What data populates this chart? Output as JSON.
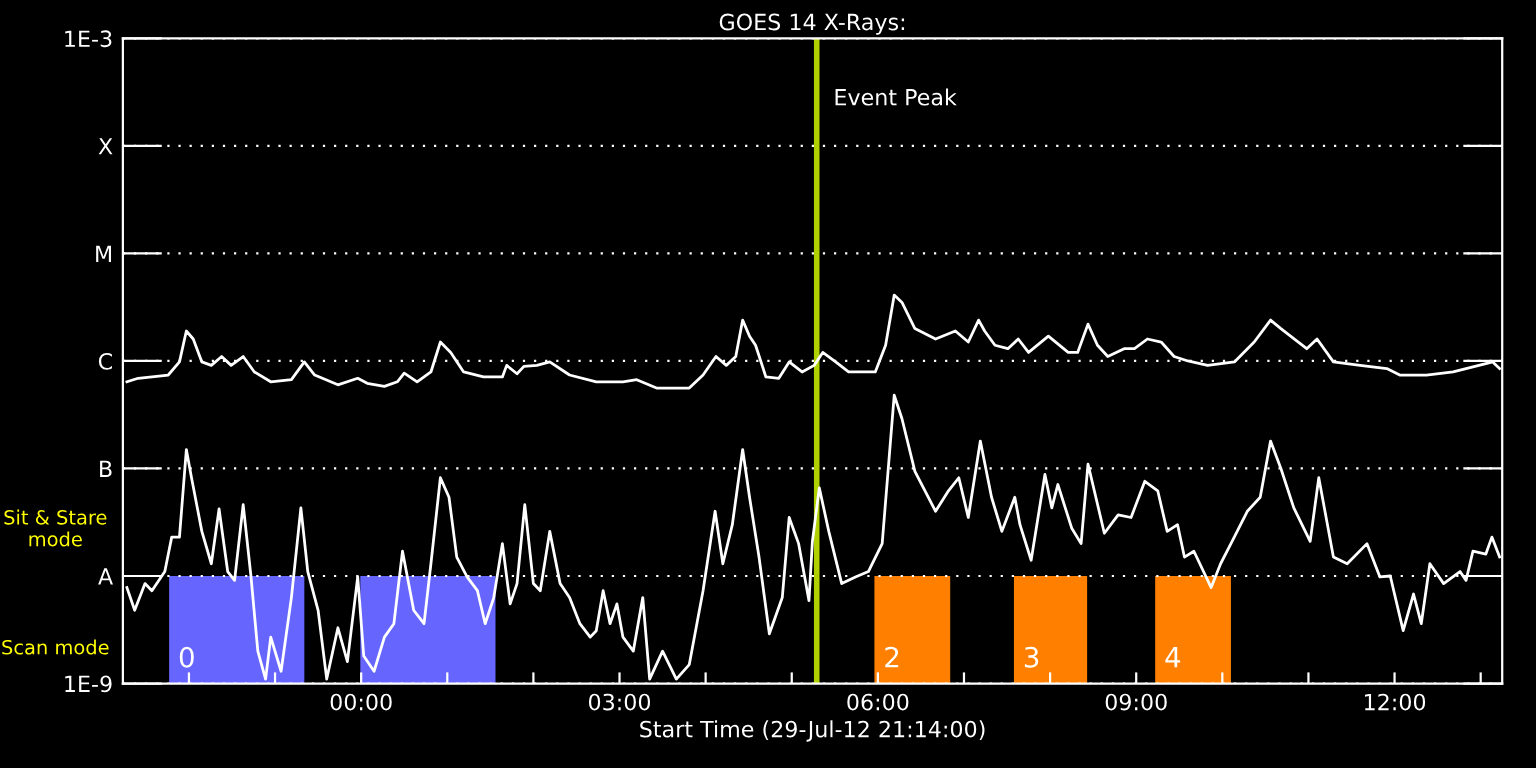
{
  "chart_data": {
    "type": "line",
    "title": "GOES 14 X-Rays:",
    "xlabel": "Start Time (29-Jul-12 21:14:00)",
    "log": true,
    "grid": "y",
    "line_style": "solid",
    "marker": "none",
    "xlim": [
      -2.767,
      13.25
    ],
    "xticks": [
      {
        "value": -2,
        "label": null
      },
      {
        "value": -1,
        "label": null
      },
      {
        "value": 0,
        "label": "00:00"
      },
      {
        "value": 1,
        "label": null
      },
      {
        "value": 2,
        "label": null
      },
      {
        "value": 3,
        "label": "03:00"
      },
      {
        "value": 4,
        "label": null
      },
      {
        "value": 5,
        "label": null
      },
      {
        "value": 6,
        "label": "06:00"
      },
      {
        "value": 7,
        "label": null
      },
      {
        "value": 8,
        "label": null
      },
      {
        "value": 9,
        "label": "09:00"
      },
      {
        "value": 10,
        "label": null
      },
      {
        "value": 11,
        "label": null
      },
      {
        "value": 12,
        "label": "12:00"
      },
      {
        "value": 13,
        "label": null
      }
    ],
    "ylim": [
      1e-09,
      0.001
    ],
    "yticks": [
      {
        "value": 1e-09,
        "label": "1E-9"
      },
      {
        "value": 1e-08,
        "label": "A"
      },
      {
        "value": 1e-07,
        "label": "B"
      },
      {
        "value": 1e-06,
        "label": "C"
      },
      {
        "value": 1e-05,
        "label": "M"
      },
      {
        "value": 0.0001,
        "label": "X"
      },
      {
        "value": 0.001,
        "label": "1E-3"
      }
    ],
    "series": [
      {
        "color": "#ffffff",
        "x": [
          -2.72,
          -2.59,
          -2.24,
          -2.11,
          -2.03,
          -1.95,
          -1.85,
          -1.74,
          -1.62,
          -1.51,
          -1.37,
          -1.24,
          -1.05,
          -0.81,
          -0.66,
          -0.54,
          -0.27,
          -0.04,
          0.07,
          0.27,
          0.42,
          0.5,
          0.65,
          0.81,
          0.92,
          1.04,
          1.19,
          1.42,
          1.64,
          1.69,
          1.81,
          1.89,
          2.04,
          2.19,
          2.42,
          2.73,
          3.04,
          3.2,
          3.43,
          3.81,
          3.97,
          4.12,
          4.24,
          4.35,
          4.43,
          4.51,
          4.58,
          4.7,
          4.85,
          4.97,
          5.12,
          5.26,
          5.36,
          5.51,
          5.66,
          5.97,
          6.09,
          6.19,
          6.28,
          6.43,
          6.67,
          6.9,
          7.05,
          7.17,
          7.24,
          7.36,
          7.51,
          7.63,
          7.75,
          7.98,
          8.21,
          8.32,
          8.44,
          8.55,
          8.67,
          8.86,
          8.98,
          9.13,
          9.29,
          9.44,
          9.6,
          9.83,
          10.14,
          10.37,
          10.56,
          10.68,
          10.98,
          11.1,
          11.29,
          11.6,
          11.91,
          12.06,
          12.37,
          12.68,
          12.83,
          13.14,
          13.22
        ],
        "values": [
          6.4e-07,
          6.9e-07,
          7.4e-07,
          9.8e-07,
          1.9e-06,
          1.6e-06,
          9.8e-07,
          9.1e-07,
          1.1e-06,
          9.1e-07,
          1.1e-06,
          7.9e-07,
          6.4e-07,
          6.7e-07,
          9.8e-07,
          7.4e-07,
          6e-07,
          6.9e-07,
          6.2e-07,
          5.8e-07,
          6.4e-07,
          7.7e-07,
          6.4e-07,
          7.9e-07,
          1.5e-06,
          1.2e-06,
          7.9e-07,
          7.1e-07,
          7.1e-07,
          9.1e-07,
          7.6e-07,
          8.9e-07,
          9.1e-07,
          9.8e-07,
          7.4e-07,
          6.4e-07,
          6.4e-07,
          6.7e-07,
          5.6e-07,
          5.6e-07,
          7.4e-07,
          1.1e-06,
          9.1e-07,
          1.1e-06,
          2.4e-06,
          1.7e-06,
          1.4e-06,
          7.1e-07,
          6.9e-07,
          9.8e-07,
          7.9e-07,
          9.1e-07,
          1.2e-06,
          9.8e-07,
          7.9e-07,
          7.9e-07,
          1.4e-06,
          4.1e-06,
          3.5e-06,
          2e-06,
          1.6e-06,
          1.9e-06,
          1.5e-06,
          2.4e-06,
          1.9e-06,
          1.4e-06,
          1.3e-06,
          1.6e-06,
          1.2e-06,
          1.7e-06,
          1.2e-06,
          1.2e-06,
          2.2e-06,
          1.4e-06,
          1.1e-06,
          1.3e-06,
          1.3e-06,
          1.6e-06,
          1.5e-06,
          1.1e-06,
          1e-06,
          9.1e-07,
          9.8e-07,
          1.5e-06,
          2.4e-06,
          2e-06,
          1.3e-06,
          1.6e-06,
          9.8e-07,
          9.1e-07,
          8.5e-07,
          7.4e-07,
          7.4e-07,
          7.9e-07,
          8.5e-07,
          9.8e-07,
          8.5e-07
        ]
      },
      {
        "color": "#ffffff",
        "x": [
          -2.72,
          -2.63,
          -2.51,
          -2.43,
          -2.28,
          -2.2,
          -2.11,
          -2.03,
          -1.97,
          -1.85,
          -1.74,
          -1.65,
          -1.55,
          -1.47,
          -1.37,
          -1.28,
          -1.2,
          -1.11,
          -1.05,
          -0.93,
          -0.81,
          -0.7,
          -0.62,
          -0.5,
          -0.4,
          -0.27,
          -0.16,
          -0.04,
          0.03,
          0.15,
          0.27,
          0.38,
          0.48,
          0.61,
          0.73,
          0.81,
          0.92,
          1.02,
          1.11,
          1.23,
          1.35,
          1.44,
          1.54,
          1.64,
          1.73,
          1.81,
          1.9,
          2.0,
          2.08,
          2.19,
          2.31,
          2.42,
          2.54,
          2.66,
          2.73,
          2.81,
          2.89,
          2.97,
          3.04,
          3.16,
          3.27,
          3.35,
          3.5,
          3.66,
          3.81,
          3.97,
          4.11,
          4.2,
          4.31,
          4.43,
          4.51,
          4.62,
          4.74,
          4.89,
          4.97,
          5.08,
          5.2,
          5.24,
          5.32,
          5.43,
          5.58,
          5.74,
          5.89,
          6.05,
          6.19,
          6.28,
          6.43,
          6.67,
          6.82,
          6.94,
          7.05,
          7.19,
          7.32,
          7.44,
          7.59,
          7.65,
          7.78,
          7.94,
          8.02,
          8.09,
          8.25,
          8.36,
          8.44,
          8.63,
          8.79,
          8.94,
          9.1,
          9.25,
          9.36,
          9.48,
          9.56,
          9.67,
          9.87,
          9.98,
          10.1,
          10.29,
          10.44,
          10.56,
          10.68,
          10.83,
          11.02,
          11.12,
          11.29,
          11.45,
          11.68,
          11.83,
          11.95,
          12.1,
          12.22,
          12.31,
          12.41,
          12.57,
          12.76,
          12.83,
          12.91,
          13.06,
          13.13,
          13.22
        ],
        "values": [
          7.8e-09,
          4.8e-09,
          8.5e-09,
          7.3e-09,
          1.1e-08,
          2.3e-08,
          2.3e-08,
          1.5e-07,
          8.2e-08,
          2.6e-08,
          1.3e-08,
          4.2e-08,
          1.1e-08,
          9.1e-09,
          4.6e-08,
          1e-08,
          2e-09,
          1.1e-09,
          2.7e-09,
          1.3e-09,
          6.3e-09,
          4.3e-08,
          1.1e-08,
          4.8e-09,
          1.1e-09,
          3.3e-09,
          1.6e-09,
          9.8e-09,
          1.8e-09,
          1.3e-09,
          2.7e-09,
          3.6e-09,
          1.7e-08,
          4.8e-09,
          3.6e-09,
          1.3e-08,
          8.2e-08,
          5.4e-08,
          1.5e-08,
          9.8e-09,
          7.3e-09,
          3.6e-09,
          6.3e-09,
          2e-08,
          5.5e-09,
          8.5e-09,
          4.6e-08,
          8.5e-09,
          7.3e-09,
          2.6e-08,
          8.5e-09,
          6.3e-09,
          3.6e-09,
          2.7e-09,
          3.1e-09,
          7.3e-09,
          3.6e-09,
          5.5e-09,
          2.7e-09,
          2e-09,
          6.3e-09,
          1.1e-09,
          2e-09,
          1.1e-09,
          1.5e-09,
          7.3e-09,
          4e-08,
          1.3e-08,
          3e-08,
          1.5e-07,
          5.4e-08,
          1.5e-08,
          2.9e-09,
          6.3e-09,
          3.5e-08,
          2e-08,
          5.9e-09,
          2.1e-08,
          6.6e-08,
          2.6e-08,
          8.5e-09,
          9.8e-09,
          1.1e-08,
          2e-08,
          4.8e-07,
          2.9e-07,
          9.4e-08,
          4e-08,
          6.2e-08,
          8.2e-08,
          3.5e-08,
          1.8e-07,
          5.4e-08,
          2.6e-08,
          5.4e-08,
          3e-08,
          1.4e-08,
          8.8e-08,
          4.3e-08,
          7.1e-08,
          2.8e-08,
          2e-08,
          1.1e-07,
          2.5e-08,
          3.7e-08,
          3.5e-08,
          7.6e-08,
          6.2e-08,
          2.6e-08,
          3e-08,
          1.5e-08,
          1.7e-08,
          7.8e-09,
          1.3e-08,
          2e-08,
          4e-08,
          5.4e-08,
          1.8e-07,
          1e-07,
          4.3e-08,
          2.1e-08,
          8.2e-08,
          1.5e-08,
          1.3e-08,
          2e-08,
          9.8e-09,
          1e-08,
          3.1e-09,
          6.8e-09,
          3.6e-09,
          1.3e-08,
          8.5e-09,
          1.1e-08,
          9.1e-09,
          1.7e-08,
          1.6e-08,
          2.3e-08,
          1.5e-08
        ]
      }
    ],
    "ref_lines": [
      {
        "axis": "x",
        "value": 5.29,
        "label": "Event Peak",
        "color": "#b0d000",
        "line_style": "solid"
      }
    ],
    "bands": [
      {
        "axis": "x",
        "from": -2.23,
        "to": -0.66,
        "label": "0",
        "color": "#6666ff"
      },
      {
        "axis": "x",
        "from": -0.01,
        "to": 1.56,
        "label": null,
        "color": "#6666ff"
      },
      {
        "axis": "x",
        "from": 5.96,
        "to": 6.84,
        "label": "2",
        "color": "#ff8000"
      },
      {
        "axis": "x",
        "from": 7.58,
        "to": 8.43,
        "label": "3",
        "color": "#ff8000"
      },
      {
        "axis": "x",
        "from": 9.22,
        "to": 10.1,
        "label": "4",
        "color": "#ff8000"
      }
    ],
    "annotations": [
      "Sit & Stare\nmode",
      "Scan mode"
    ]
  }
}
